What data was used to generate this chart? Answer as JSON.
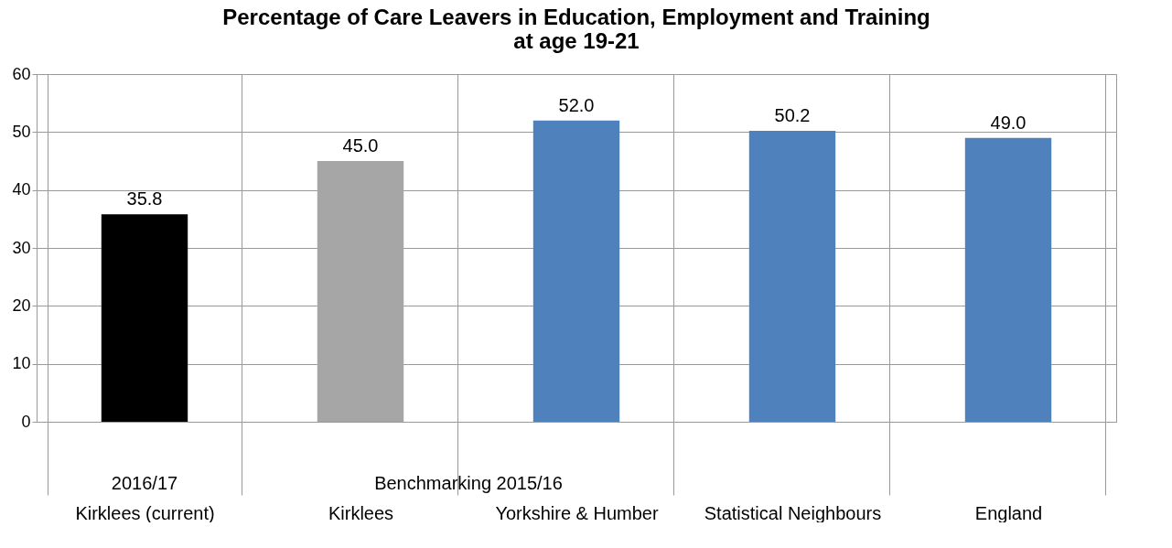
{
  "chart_data": {
    "type": "bar",
    "title": "Percentage of Care Leavers in Education, Employment and Training\nat age 19-21",
    "categories": [
      "Kirklees (current)",
      "Kirklees",
      "Yorkshire & Humber",
      "Statistical Neighbours",
      "England"
    ],
    "values": [
      35.8,
      45.0,
      52.0,
      50.2,
      49.0
    ],
    "colors": [
      "#000000",
      "#a6a6a6",
      "#4f81bd",
      "#4f81bd",
      "#4f81bd"
    ],
    "ylim": [
      0,
      60
    ],
    "yticks": [
      0,
      10,
      20,
      30,
      40,
      50,
      60
    ],
    "value_labels": [
      "35.8",
      "45.0",
      "52.0",
      "50.2",
      "49.0"
    ],
    "grid": true,
    "annotations": [
      "2016/17",
      "Benchmarking 2015/16"
    ]
  }
}
